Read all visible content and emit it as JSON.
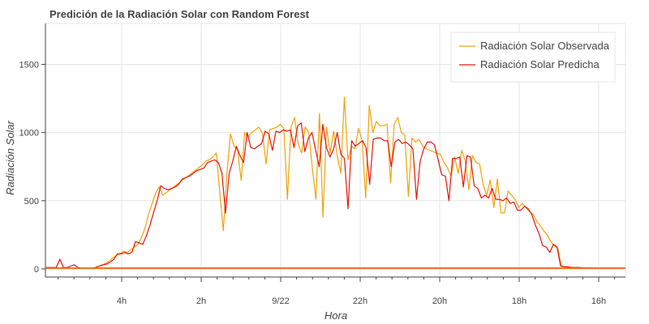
{
  "chart_data": {
    "type": "line",
    "title": "Predición de la Radiación Solar con Random Forest",
    "xlabel": "Hora",
    "ylabel": "Radiación Solar",
    "ylim": [
      -60,
      1800
    ],
    "yticks": [
      0,
      500,
      1000,
      1500
    ],
    "x_tick_labels": [
      "4h",
      "2h",
      "9/22",
      "22h",
      "20h",
      "18h",
      "16h"
    ],
    "grid": true,
    "legend_position": "top-right",
    "series": [
      {
        "name": "Radiación Solar Observada",
        "color": "#f0a30a",
        "values": [
          5,
          5,
          5,
          5,
          5,
          5,
          5,
          5,
          5,
          5,
          5,
          5,
          5,
          5,
          10,
          20,
          30,
          40,
          60,
          80,
          100,
          110,
          130,
          120,
          140,
          160,
          180,
          230,
          300,
          400,
          480,
          560,
          600,
          540,
          560,
          580,
          600,
          620,
          640,
          660,
          680,
          700,
          720,
          740,
          760,
          790,
          800,
          820,
          850,
          560,
          280,
          700,
          990,
          900,
          870,
          650,
          1000,
          970,
          1000,
          1020,
          1040,
          990,
          770,
          1020,
          1030,
          1040,
          1060,
          1030,
          510,
          1040,
          1110,
          920,
          850,
          1040,
          1000,
          740,
          510,
          1140,
          380,
          1040,
          850,
          1010,
          830,
          700,
          1260,
          800,
          900,
          880,
          1030,
          940,
          520,
          1200,
          1000,
          1080,
          1050,
          1050,
          1060,
          630,
          1060,
          1110,
          1000,
          980,
          530,
          960,
          930,
          950,
          900,
          880,
          870,
          860,
          850,
          840,
          780,
          740,
          680,
          820,
          700,
          870,
          790,
          580,
          830,
          780,
          770,
          620,
          540,
          650,
          450,
          660,
          410,
          410,
          570,
          540,
          510,
          450,
          480,
          450,
          420,
          400,
          350,
          320,
          280,
          250,
          200,
          170,
          150,
          20,
          15,
          12,
          10,
          10,
          10,
          8,
          8,
          8,
          5,
          5,
          5,
          5,
          5,
          5,
          5,
          5,
          5,
          5
        ]
      },
      {
        "name": "Radiación Solar Predicha",
        "color": "#e8150a",
        "values": [
          10,
          10,
          10,
          10,
          70,
          10,
          10,
          20,
          30,
          10,
          5,
          5,
          5,
          5,
          10,
          20,
          30,
          35,
          50,
          70,
          110,
          110,
          120,
          110,
          120,
          200,
          190,
          180,
          240,
          320,
          410,
          500,
          610,
          590,
          580,
          590,
          600,
          620,
          660,
          670,
          680,
          700,
          720,
          730,
          740,
          780,
          790,
          800,
          780,
          700,
          410,
          700,
          790,
          900,
          830,
          780,
          1000,
          890,
          880,
          900,
          920,
          1010,
          990,
          870,
          1010,
          1000,
          1020,
          1010,
          1020,
          890,
          1050,
          1070,
          860,
          960,
          1000,
          870,
          750,
          1060,
          890,
          820,
          880,
          1000,
          840,
          810,
          440,
          940,
          900,
          920,
          940,
          890,
          620,
          950,
          960,
          960,
          940,
          940,
          750,
          930,
          950,
          920,
          930,
          910,
          880,
          510,
          790,
          880,
          930,
          930,
          910,
          800,
          690,
          680,
          500,
          810,
          810,
          820,
          600,
          830,
          820,
          610,
          590,
          520,
          540,
          520,
          590,
          510,
          510,
          500,
          520,
          480,
          490,
          430,
          430,
          460,
          440,
          400,
          320,
          260,
          170,
          160,
          120,
          180,
          160,
          20,
          15,
          15,
          10,
          10,
          10,
          8,
          8,
          8,
          5,
          5,
          5,
          5,
          5,
          5,
          5,
          5,
          5,
          5
        ]
      },
      {
        "name": "",
        "color": "#e86f1a",
        "values": [
          5,
          5
        ]
      }
    ]
  }
}
